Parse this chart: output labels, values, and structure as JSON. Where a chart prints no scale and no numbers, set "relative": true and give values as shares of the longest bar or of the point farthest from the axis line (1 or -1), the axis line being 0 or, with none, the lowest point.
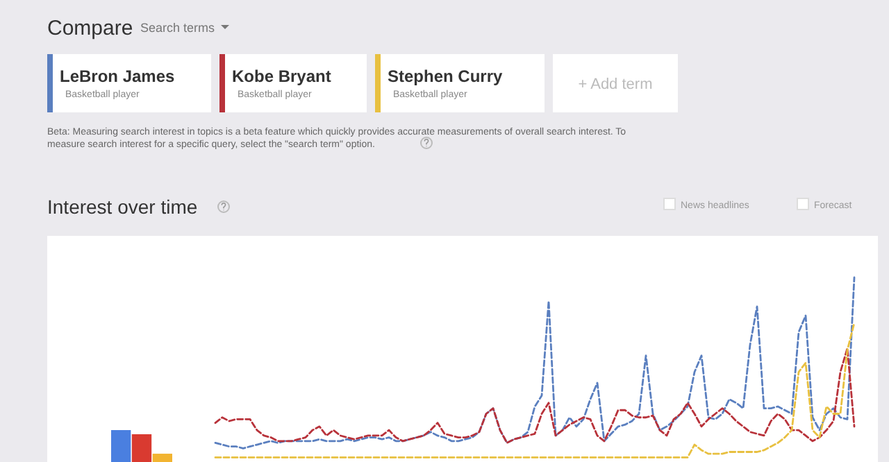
{
  "chart_data": [
    {
      "type": "other",
      "title": "Compare",
      "annotations": [
        "Search terms",
        "Basketball player",
        "Basketball player",
        "Basketball player",
        "+ Add term",
        "Beta: Measuring search interest in topics is a beta feature which quickly provides accurate measurements of overall search interest. To measure search interest for a specific query, select the \"search term\" option."
      ]
    },
    {
      "type": "bar",
      "relative": true,
      "categories": [
        null,
        null,
        null
      ],
      "values": [
        1,
        0.87,
        0.26
      ],
      "colors": [
        "#4a7fe0",
        "#d93a30",
        "#f2b431"
      ]
    },
    {
      "type": "line",
      "relative": true,
      "title": "Interest over time",
      "annotations": [
        "News headlines",
        "Forecast"
      ],
      "line_style": "dashed",
      "marker": "none",
      "legend": "top left",
      "categories": [
        null,
        null,
        null,
        null,
        null,
        null,
        null,
        null,
        null,
        null,
        null,
        null,
        null,
        null,
        null,
        null,
        null,
        null,
        null,
        null,
        null,
        null,
        null,
        null,
        null,
        null,
        null,
        null,
        null,
        null,
        null,
        null,
        null,
        null,
        null,
        null,
        null,
        null,
        null,
        null,
        null,
        null,
        null,
        null,
        null,
        null,
        null,
        null,
        null,
        null,
        null,
        null,
        null,
        null,
        null,
        null,
        null,
        null,
        null,
        null,
        null,
        null,
        null,
        null,
        null,
        null,
        null,
        null,
        null,
        null,
        null,
        null,
        null,
        null,
        null,
        null,
        null,
        null,
        null,
        null,
        null,
        null,
        null,
        null,
        null,
        null,
        null,
        null,
        null,
        null,
        null,
        null,
        null
      ],
      "series": [
        {
          "name": "LeBron James",
          "color": "#5a7fbf",
          "values": [
            0.09,
            0.08,
            0.07,
            0.07,
            0.06,
            0.07,
            0.08,
            0.09,
            0.1,
            0.09,
            0.1,
            0.1,
            0.1,
            0.1,
            0.1,
            0.11,
            0.1,
            0.1,
            0.1,
            0.11,
            0.1,
            0.11,
            0.12,
            0.12,
            0.11,
            0.12,
            0.1,
            0.1,
            0.11,
            0.12,
            0.13,
            0.15,
            0.13,
            0.12,
            0.1,
            0.1,
            0.11,
            0.12,
            0.15,
            0.25,
            0.28,
            0.16,
            0.09,
            0.11,
            0.12,
            0.15,
            0.29,
            0.35,
            0.87,
            0.13,
            0.16,
            0.23,
            0.18,
            0.22,
            0.33,
            0.42,
            0.1,
            0.14,
            0.18,
            0.19,
            0.21,
            0.25,
            0.57,
            0.25,
            0.16,
            0.18,
            0.21,
            0.25,
            0.29,
            0.48,
            0.57,
            0.23,
            0.22,
            0.25,
            0.33,
            0.31,
            0.28,
            0.63,
            0.84,
            0.28,
            0.28,
            0.29,
            0.27,
            0.25,
            0.7,
            0.79,
            0.23,
            0.16,
            0.25,
            0.28,
            0.23,
            0.22,
            1
          ]
        },
        {
          "name": "Kobe Bryant",
          "color": "#b8323a",
          "values": [
            0.2,
            0.23,
            0.21,
            0.22,
            0.22,
            0.22,
            0.16,
            0.13,
            0.12,
            0.1,
            0.1,
            0.1,
            0.11,
            0.12,
            0.16,
            0.18,
            0.13,
            0.16,
            0.13,
            0.12,
            0.11,
            0.12,
            0.13,
            0.13,
            0.13,
            0.16,
            0.12,
            0.1,
            0.11,
            0.12,
            0.13,
            0.16,
            0.2,
            0.14,
            0.13,
            0.12,
            0.12,
            0.13,
            0.15,
            0.25,
            0.28,
            0.16,
            0.09,
            0.11,
            0.12,
            0.13,
            0.14,
            0.25,
            0.31,
            0.13,
            0.16,
            0.19,
            0.21,
            0.23,
            0.22,
            0.13,
            0.1,
            0.18,
            0.27,
            0.27,
            0.24,
            0.23,
            0.23,
            0.24,
            0.16,
            0.13,
            0.22,
            0.25,
            0.31,
            0.25,
            0.18,
            0.22,
            0.25,
            0.28,
            0.25,
            0.21,
            0.18,
            0.15,
            0.14,
            0.13,
            0.21,
            0.25,
            0.22,
            0.16,
            0.16,
            0.13,
            0.1,
            0.12,
            0.16,
            0.21,
            0.48,
            0.61,
            0.18
          ]
        },
        {
          "name": "Stephen Curry",
          "color": "#e8c040",
          "values": [
            0.01,
            0.01,
            0.01,
            0.01,
            0.01,
            0.01,
            0.01,
            0.01,
            0.01,
            0.01,
            0.01,
            0.01,
            0.01,
            0.01,
            0.01,
            0.01,
            0.01,
            0.01,
            0.01,
            0.01,
            0.01,
            0.01,
            0.01,
            0.01,
            0.01,
            0.01,
            0.01,
            0.01,
            0.01,
            0.01,
            0.01,
            0.01,
            0.01,
            0.01,
            0.01,
            0.01,
            0.01,
            0.01,
            0.01,
            0.01,
            0.01,
            0.01,
            0.01,
            0.01,
            0.01,
            0.01,
            0.01,
            0.01,
            0.01,
            0.01,
            0.01,
            0.01,
            0.01,
            0.01,
            0.01,
            0.01,
            0.01,
            0.01,
            0.01,
            0.01,
            0.01,
            0.01,
            0.01,
            0.01,
            0.01,
            0.01,
            0.01,
            0.01,
            0.01,
            0.08,
            0.05,
            0.03,
            0.03,
            0.03,
            0.04,
            0.04,
            0.04,
            0.04,
            0.04,
            0.05,
            0.07,
            0.09,
            0.12,
            0.16,
            0.48,
            0.53,
            0.16,
            0.12,
            0.29,
            0.25,
            0.25,
            0.6,
            0.75
          ]
        }
      ]
    }
  ]
}
